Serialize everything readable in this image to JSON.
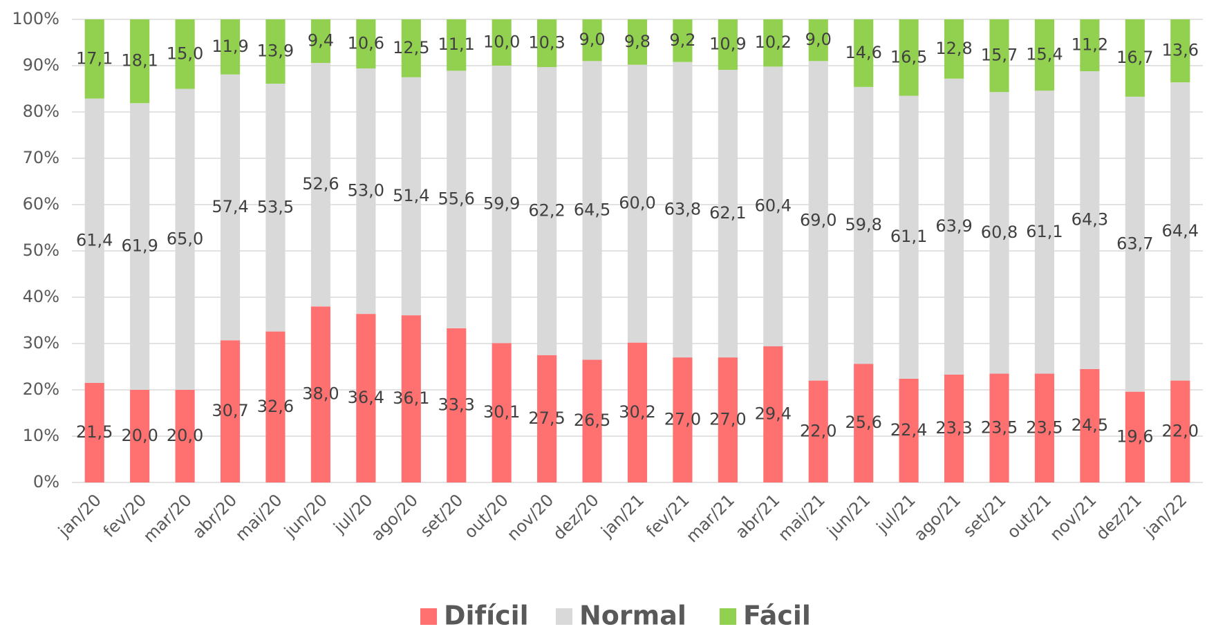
{
  "chart_data": {
    "type": "stacked_bar",
    "categories": [
      "jan/20",
      "fev/20",
      "mar/20",
      "abr/20",
      "mai/20",
      "jun/20",
      "jul/20",
      "ago/20",
      "set/20",
      "out/20",
      "nov/20",
      "dez/20",
      "jan/21",
      "fev/21",
      "mar/21",
      "abr/21",
      "mai/21",
      "jun/21",
      "jul/21",
      "ago/21",
      "set/21",
      "out/21",
      "nov/21",
      "dez/21",
      "jan/22"
    ],
    "series": [
      {
        "name": "Difícil",
        "color": "#ff7070",
        "values": [
          21.5,
          20.0,
          20.0,
          30.7,
          32.6,
          38.0,
          36.4,
          36.1,
          33.3,
          30.1,
          27.5,
          26.5,
          30.2,
          27.0,
          27.0,
          29.4,
          22.0,
          25.6,
          22.4,
          23.3,
          23.5,
          23.5,
          24.5,
          19.6,
          22.0
        ],
        "value_labels": [
          "21,5",
          "20,0",
          "20,0",
          "30,7",
          "32,6",
          "38,0",
          "36,4",
          "36,1",
          "33,3",
          "30,1",
          "27,5",
          "26,5",
          "30,2",
          "27,0",
          "27,0",
          "29,4",
          "22,0",
          "25,6",
          "22,4",
          "23,3",
          "23,5",
          "23,5",
          "24,5",
          "19,6",
          "22,0"
        ]
      },
      {
        "name": "Normal",
        "color": "#d9d9d9",
        "values": [
          61.4,
          61.9,
          65.0,
          57.4,
          53.5,
          52.6,
          53.0,
          51.4,
          55.6,
          59.9,
          62.2,
          64.5,
          60.0,
          63.8,
          62.1,
          60.4,
          69.0,
          59.8,
          61.1,
          63.9,
          60.8,
          61.1,
          64.3,
          63.7,
          64.4
        ],
        "value_labels": [
          "61,4",
          "61,9",
          "65,0",
          "57,4",
          "53,5",
          "52,6",
          "53,0",
          "51,4",
          "55,6",
          "59,9",
          "62,2",
          "64,5",
          "60,0",
          "63,8",
          "62,1",
          "60,4",
          "69,0",
          "59,8",
          "61,1",
          "63,9",
          "60,8",
          "61,1",
          "64,3",
          "63,7",
          "64,4"
        ]
      },
      {
        "name": "Fácil",
        "color": "#92d050",
        "values": [
          17.1,
          18.1,
          15.0,
          11.9,
          13.9,
          9.4,
          10.6,
          12.5,
          11.1,
          10.0,
          10.3,
          9.0,
          9.8,
          9.2,
          10.9,
          10.2,
          9.0,
          14.6,
          16.5,
          12.8,
          15.7,
          15.4,
          11.2,
          16.7,
          13.6
        ],
        "value_labels": [
          "17,1",
          "18,1",
          "15,0",
          "11,9",
          "13,9",
          "9,4",
          "10,6",
          "12,5",
          "11,1",
          "10,0",
          "10,3",
          "9,0",
          "9,8",
          "9,2",
          "10,9",
          "10,2",
          "9,0",
          "14,6",
          "16,5",
          "12,8",
          "15,7",
          "15,4",
          "11,2",
          "16,7",
          "13,6"
        ]
      }
    ],
    "ylim": [
      0,
      100
    ],
    "yticks": [
      {
        "value": 0,
        "label": "0%"
      },
      {
        "value": 10,
        "label": "10%"
      },
      {
        "value": 20,
        "label": "20%"
      },
      {
        "value": 30,
        "label": "30%"
      },
      {
        "value": 40,
        "label": "40%"
      },
      {
        "value": 50,
        "label": "50%"
      },
      {
        "value": 60,
        "label": "60%"
      },
      {
        "value": 70,
        "label": "70%"
      },
      {
        "value": 80,
        "label": "80%"
      },
      {
        "value": 90,
        "label": "90%"
      },
      {
        "value": 100,
        "label": "100%"
      }
    ],
    "grid": true,
    "legend": "bottom"
  }
}
